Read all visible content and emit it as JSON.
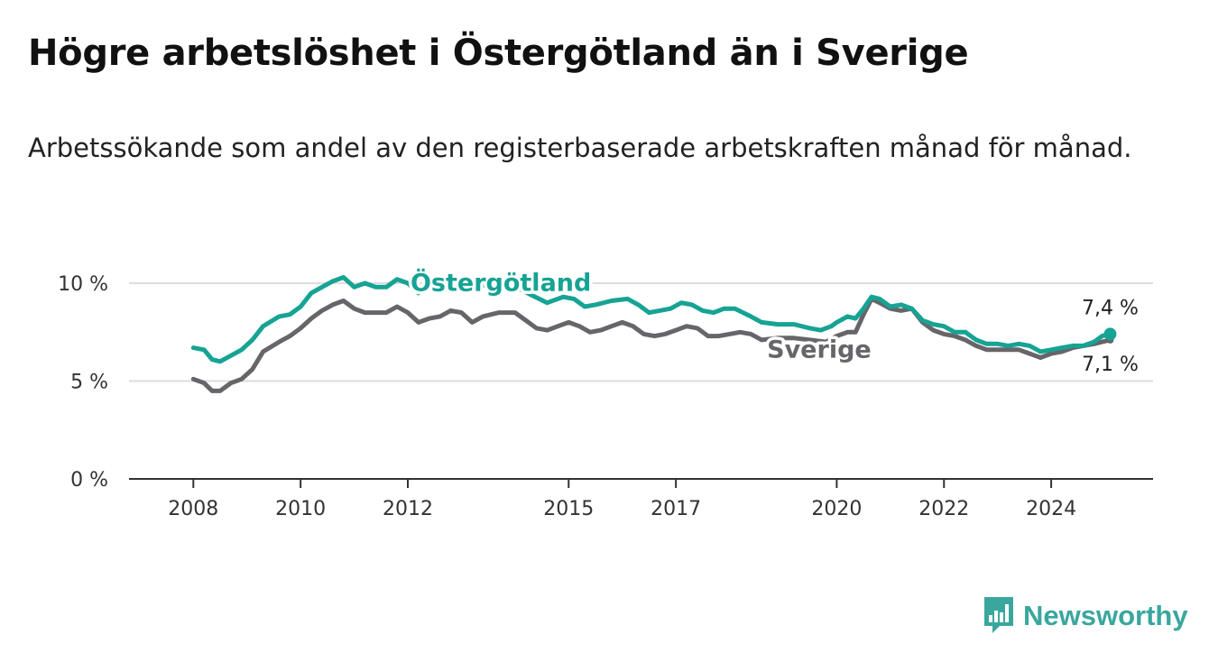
{
  "title": "Högre arbetslöshet i Östergötland än i Sverige",
  "subtitle": "Arbetssökande som andel av den registerbaserade arbetskraften månad för månad.",
  "brand": {
    "name": "Newsworthy",
    "icon": "bar-chart-speech-bubble-icon"
  },
  "colors": {
    "ostergotland": "#16a394",
    "sverige": "#676569",
    "grid": "#dddddd",
    "axis": "#333333"
  },
  "chart_data": {
    "type": "line",
    "x_unit": "year",
    "xlim": [
      2006.8,
      2025.9
    ],
    "ylim": [
      0,
      10
    ],
    "y_ticks": [
      {
        "value": 0,
        "label": "0 %"
      },
      {
        "value": 5,
        "label": "5 %"
      },
      {
        "value": 10,
        "label": "10 %"
      }
    ],
    "x_ticks": [
      {
        "value": 2008,
        "label": "2008"
      },
      {
        "value": 2010,
        "label": "2010"
      },
      {
        "value": 2012,
        "label": "2012"
      },
      {
        "value": 2015,
        "label": "2015"
      },
      {
        "value": 2017,
        "label": "2017"
      },
      {
        "value": 2020,
        "label": "2020"
      },
      {
        "value": 2022,
        "label": "2022"
      },
      {
        "value": 2024,
        "label": "2024"
      }
    ],
    "grid": true,
    "legend": "direct labels on lines",
    "series": [
      {
        "name": "Östergötland",
        "color": "#16a394",
        "end_label": "7,4 %",
        "end_value": 7.4,
        "points": [
          [
            2008.0,
            6.7
          ],
          [
            2008.2,
            6.6
          ],
          [
            2008.35,
            6.1
          ],
          [
            2008.5,
            6.0
          ],
          [
            2008.7,
            6.3
          ],
          [
            2008.9,
            6.6
          ],
          [
            2009.1,
            7.1
          ],
          [
            2009.3,
            7.8
          ],
          [
            2009.6,
            8.3
          ],
          [
            2009.8,
            8.4
          ],
          [
            2010.0,
            8.8
          ],
          [
            2010.2,
            9.5
          ],
          [
            2010.4,
            9.8
          ],
          [
            2010.6,
            10.1
          ],
          [
            2010.8,
            10.3
          ],
          [
            2011.0,
            9.8
          ],
          [
            2011.2,
            10.0
          ],
          [
            2011.4,
            9.8
          ],
          [
            2011.6,
            9.8
          ],
          [
            2011.8,
            10.2
          ],
          [
            2012.0,
            10.0
          ],
          [
            2012.2,
            9.5
          ],
          [
            2012.4,
            9.8
          ],
          [
            2012.6,
            9.6
          ],
          [
            2012.8,
            9.8
          ],
          [
            2013.0,
            10.1
          ],
          [
            2013.4,
            9.9
          ],
          [
            2013.8,
            9.7
          ],
          [
            2014.1,
            9.7
          ],
          [
            2014.3,
            9.4
          ],
          [
            2014.6,
            9.0
          ],
          [
            2014.9,
            9.3
          ],
          [
            2015.1,
            9.2
          ],
          [
            2015.3,
            8.8
          ],
          [
            2015.5,
            8.9
          ],
          [
            2015.8,
            9.1
          ],
          [
            2016.1,
            9.2
          ],
          [
            2016.3,
            8.9
          ],
          [
            2016.5,
            8.5
          ],
          [
            2016.7,
            8.6
          ],
          [
            2016.9,
            8.7
          ],
          [
            2017.1,
            9.0
          ],
          [
            2017.3,
            8.9
          ],
          [
            2017.5,
            8.6
          ],
          [
            2017.7,
            8.5
          ],
          [
            2017.9,
            8.7
          ],
          [
            2018.1,
            8.7
          ],
          [
            2018.4,
            8.3
          ],
          [
            2018.6,
            8.0
          ],
          [
            2018.9,
            7.9
          ],
          [
            2019.2,
            7.9
          ],
          [
            2019.5,
            7.7
          ],
          [
            2019.7,
            7.6
          ],
          [
            2019.9,
            7.8
          ],
          [
            2020.0,
            8.0
          ],
          [
            2020.2,
            8.3
          ],
          [
            2020.35,
            8.2
          ],
          [
            2020.5,
            8.7
          ],
          [
            2020.65,
            9.3
          ],
          [
            2020.8,
            9.2
          ],
          [
            2021.0,
            8.8
          ],
          [
            2021.2,
            8.9
          ],
          [
            2021.4,
            8.7
          ],
          [
            2021.6,
            8.1
          ],
          [
            2021.8,
            7.9
          ],
          [
            2022.0,
            7.8
          ],
          [
            2022.2,
            7.5
          ],
          [
            2022.4,
            7.5
          ],
          [
            2022.6,
            7.1
          ],
          [
            2022.8,
            6.9
          ],
          [
            2023.0,
            6.9
          ],
          [
            2023.2,
            6.8
          ],
          [
            2023.4,
            6.9
          ],
          [
            2023.6,
            6.8
          ],
          [
            2023.8,
            6.5
          ],
          [
            2024.0,
            6.6
          ],
          [
            2024.2,
            6.7
          ],
          [
            2024.4,
            6.8
          ],
          [
            2024.6,
            6.8
          ],
          [
            2024.8,
            7.0
          ],
          [
            2024.95,
            7.3
          ],
          [
            2025.1,
            7.4
          ]
        ]
      },
      {
        "name": "Sverige",
        "color": "#676569",
        "end_label": "7,1 %",
        "end_value": 7.1,
        "points": [
          [
            2008.0,
            5.1
          ],
          [
            2008.2,
            4.9
          ],
          [
            2008.35,
            4.5
          ],
          [
            2008.5,
            4.5
          ],
          [
            2008.7,
            4.9
          ],
          [
            2008.9,
            5.1
          ],
          [
            2009.1,
            5.6
          ],
          [
            2009.3,
            6.5
          ],
          [
            2009.6,
            7.0
          ],
          [
            2009.8,
            7.3
          ],
          [
            2010.0,
            7.7
          ],
          [
            2010.2,
            8.2
          ],
          [
            2010.4,
            8.6
          ],
          [
            2010.6,
            8.9
          ],
          [
            2010.8,
            9.1
          ],
          [
            2011.0,
            8.7
          ],
          [
            2011.2,
            8.5
          ],
          [
            2011.4,
            8.5
          ],
          [
            2011.6,
            8.5
          ],
          [
            2011.8,
            8.8
          ],
          [
            2012.0,
            8.5
          ],
          [
            2012.2,
            8.0
          ],
          [
            2012.4,
            8.2
          ],
          [
            2012.6,
            8.3
          ],
          [
            2012.8,
            8.6
          ],
          [
            2013.0,
            8.5
          ],
          [
            2013.2,
            8.0
          ],
          [
            2013.4,
            8.3
          ],
          [
            2013.7,
            8.5
          ],
          [
            2014.0,
            8.5
          ],
          [
            2014.2,
            8.1
          ],
          [
            2014.4,
            7.7
          ],
          [
            2014.6,
            7.6
          ],
          [
            2014.8,
            7.8
          ],
          [
            2015.0,
            8.0
          ],
          [
            2015.2,
            7.8
          ],
          [
            2015.4,
            7.5
          ],
          [
            2015.6,
            7.6
          ],
          [
            2015.8,
            7.8
          ],
          [
            2016.0,
            8.0
          ],
          [
            2016.2,
            7.8
          ],
          [
            2016.4,
            7.4
          ],
          [
            2016.6,
            7.3
          ],
          [
            2016.8,
            7.4
          ],
          [
            2017.0,
            7.6
          ],
          [
            2017.2,
            7.8
          ],
          [
            2017.4,
            7.7
          ],
          [
            2017.6,
            7.3
          ],
          [
            2017.8,
            7.3
          ],
          [
            2018.0,
            7.4
          ],
          [
            2018.2,
            7.5
          ],
          [
            2018.4,
            7.4
          ],
          [
            2018.6,
            7.1
          ],
          [
            2018.9,
            7.2
          ],
          [
            2019.2,
            7.2
          ],
          [
            2019.5,
            7.1
          ],
          [
            2019.8,
            7.0
          ],
          [
            2020.0,
            7.3
          ],
          [
            2020.2,
            7.5
          ],
          [
            2020.35,
            7.5
          ],
          [
            2020.5,
            8.4
          ],
          [
            2020.65,
            9.2
          ],
          [
            2020.8,
            9.0
          ],
          [
            2021.0,
            8.7
          ],
          [
            2021.2,
            8.6
          ],
          [
            2021.4,
            8.7
          ],
          [
            2021.6,
            8.0
          ],
          [
            2021.8,
            7.6
          ],
          [
            2022.0,
            7.4
          ],
          [
            2022.2,
            7.3
          ],
          [
            2022.4,
            7.1
          ],
          [
            2022.6,
            6.8
          ],
          [
            2022.8,
            6.6
          ],
          [
            2023.0,
            6.6
          ],
          [
            2023.2,
            6.6
          ],
          [
            2023.4,
            6.6
          ],
          [
            2023.6,
            6.4
          ],
          [
            2023.8,
            6.2
          ],
          [
            2024.0,
            6.4
          ],
          [
            2024.2,
            6.5
          ],
          [
            2024.4,
            6.7
          ],
          [
            2024.6,
            6.8
          ],
          [
            2024.8,
            6.9
          ],
          [
            2024.95,
            7.0
          ],
          [
            2025.1,
            7.1
          ]
        ]
      }
    ]
  }
}
